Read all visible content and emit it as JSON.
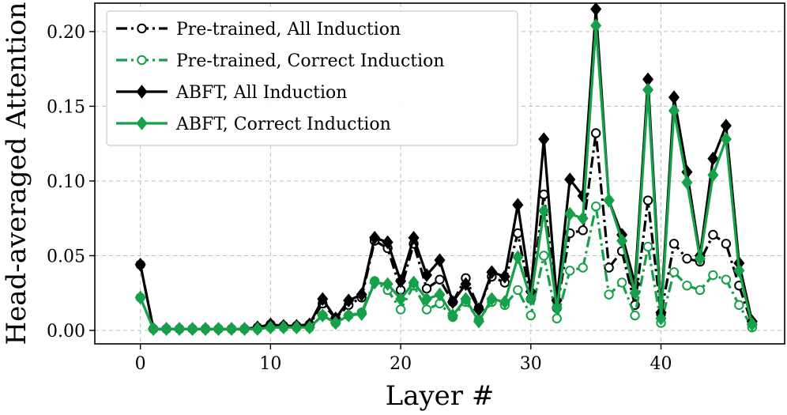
{
  "chart_data": {
    "type": "line",
    "title": "",
    "xlabel": "Layer #",
    "ylabel": "Head-averaged Attention",
    "xlim": [
      -3.5,
      49.5
    ],
    "ylim": [
      -0.009,
      0.219
    ],
    "xticks": [
      0,
      10,
      20,
      30,
      40
    ],
    "xtick_labels": [
      "0",
      "10",
      "20",
      "30",
      "40"
    ],
    "yticks": [
      0.0,
      0.05,
      0.1,
      0.15,
      0.2
    ],
    "ytick_labels": [
      "0.00",
      "0.05",
      "0.10",
      "0.15",
      "0.20"
    ],
    "grid": true,
    "legend_position": "top-left",
    "x": [
      0,
      1,
      2,
      3,
      4,
      5,
      6,
      7,
      8,
      9,
      10,
      11,
      12,
      13,
      14,
      15,
      16,
      17,
      18,
      19,
      20,
      21,
      22,
      23,
      24,
      25,
      26,
      27,
      28,
      29,
      30,
      31,
      32,
      33,
      34,
      35,
      36,
      37,
      38,
      39,
      40,
      41,
      42,
      43,
      44,
      45,
      46,
      47
    ],
    "series": [
      {
        "name": "Pre-trained, All Induction",
        "color": "#000000",
        "line_style": "dashdot",
        "marker": "open-circle",
        "values": [
          0.044,
          0.001,
          0.001,
          0.001,
          0.001,
          0.001,
          0.001,
          0.001,
          0.001,
          0.002,
          0.004,
          0.003,
          0.003,
          0.004,
          0.018,
          0.008,
          0.017,
          0.022,
          0.06,
          0.055,
          0.027,
          0.058,
          0.028,
          0.034,
          0.019,
          0.035,
          0.015,
          0.036,
          0.032,
          0.065,
          0.021,
          0.091,
          0.015,
          0.065,
          0.067,
          0.132,
          0.042,
          0.053,
          0.017,
          0.087,
          0.011,
          0.058,
          0.048,
          0.046,
          0.064,
          0.058,
          0.03,
          0.004
        ]
      },
      {
        "name": "Pre-trained, Correct Induction",
        "color": "#16a04a",
        "line_style": "dashdot",
        "marker": "open-circle",
        "values": [
          0.022,
          0.001,
          0.001,
          0.001,
          0.001,
          0.001,
          0.001,
          0.001,
          0.001,
          0.001,
          0.002,
          0.002,
          0.002,
          0.002,
          0.01,
          0.005,
          0.01,
          0.012,
          0.033,
          0.027,
          0.014,
          0.03,
          0.014,
          0.018,
          0.009,
          0.019,
          0.007,
          0.019,
          0.017,
          0.027,
          0.01,
          0.05,
          0.008,
          0.04,
          0.042,
          0.083,
          0.024,
          0.032,
          0.01,
          0.056,
          0.005,
          0.039,
          0.03,
          0.027,
          0.037,
          0.034,
          0.017,
          0.002
        ]
      },
      {
        "name": "ABFT, All Induction",
        "color": "#000000",
        "line_style": "solid",
        "marker": "filled-diamond",
        "values": [
          0.044,
          0.001,
          0.001,
          0.001,
          0.001,
          0.001,
          0.001,
          0.001,
          0.001,
          0.002,
          0.004,
          0.003,
          0.003,
          0.004,
          0.021,
          0.008,
          0.02,
          0.024,
          0.062,
          0.059,
          0.033,
          0.062,
          0.037,
          0.047,
          0.019,
          0.031,
          0.014,
          0.039,
          0.036,
          0.084,
          0.026,
          0.128,
          0.02,
          0.101,
          0.09,
          0.215,
          0.087,
          0.064,
          0.031,
          0.168,
          0.012,
          0.156,
          0.106,
          0.05,
          0.115,
          0.137,
          0.045,
          0.006
        ]
      },
      {
        "name": "ABFT, Correct Induction",
        "color": "#16a04a",
        "line_style": "solid",
        "marker": "filled-diamond",
        "values": [
          0.022,
          0.001,
          0.001,
          0.001,
          0.001,
          0.001,
          0.001,
          0.001,
          0.001,
          0.001,
          0.002,
          0.002,
          0.002,
          0.002,
          0.01,
          0.005,
          0.01,
          0.011,
          0.032,
          0.031,
          0.021,
          0.032,
          0.021,
          0.024,
          0.01,
          0.021,
          0.006,
          0.021,
          0.019,
          0.049,
          0.021,
          0.08,
          0.015,
          0.078,
          0.075,
          0.204,
          0.087,
          0.06,
          0.025,
          0.161,
          0.008,
          0.147,
          0.099,
          0.048,
          0.104,
          0.128,
          0.04,
          0.004
        ]
      }
    ]
  }
}
